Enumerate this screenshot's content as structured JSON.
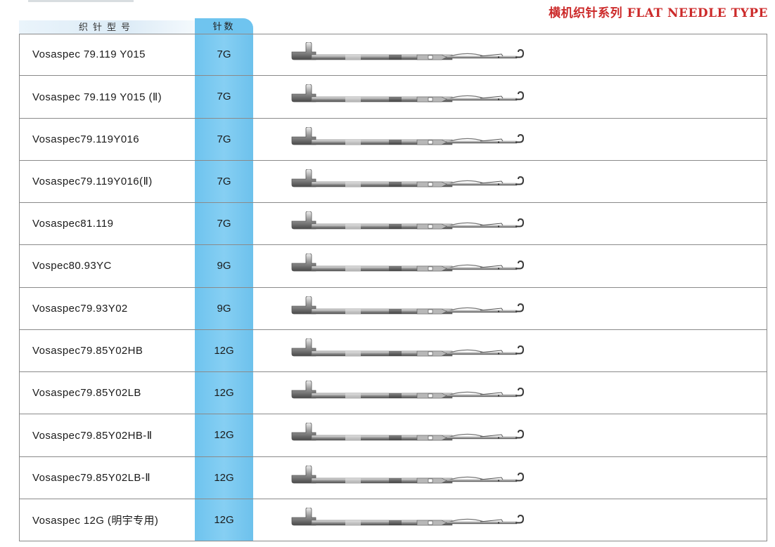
{
  "header": {
    "title": "横机织针系列 FLAT NEEDLE TYPE",
    "col_model": "织针型号",
    "col_count": "针数"
  },
  "colors": {
    "title": "#cc2a2a",
    "count_column": "#6fc4ef",
    "grid": "#8a8a8a"
  },
  "rows": [
    {
      "model": "Vosaspec 79.119 Y015",
      "gauge": "7G",
      "image": "needle-icon"
    },
    {
      "model": "Vosaspec 79.119 Y015 (Ⅱ)",
      "gauge": "7G",
      "image": "needle-icon"
    },
    {
      "model": "Vosaspec79.119Y016",
      "gauge": "7G",
      "image": "needle-icon"
    },
    {
      "model": "Vosaspec79.119Y016(Ⅱ)",
      "gauge": "7G",
      "image": "needle-icon"
    },
    {
      "model": "Vosaspec81.119",
      "gauge": "7G",
      "image": "needle-icon"
    },
    {
      "model": "Vospec80.93YC",
      "gauge": "9G",
      "image": "needle-icon"
    },
    {
      "model": "Vosaspec79.93Y02",
      "gauge": "9G",
      "image": "needle-icon"
    },
    {
      "model": "Vosaspec79.85Y02HB",
      "gauge": "12G",
      "image": "needle-icon"
    },
    {
      "model": "Vosaspec79.85Y02LB",
      "gauge": "12G",
      "image": "needle-icon"
    },
    {
      "model": "Vosaspec79.85Y02HB-Ⅱ",
      "gauge": "12G",
      "image": "needle-icon"
    },
    {
      "model": "Vosaspec79.85Y02LB-Ⅱ",
      "gauge": "12G",
      "image": "needle-icon"
    },
    {
      "model": "Vosaspec 12G (明宇专用)",
      "gauge": "12G",
      "image": "needle-icon"
    }
  ]
}
